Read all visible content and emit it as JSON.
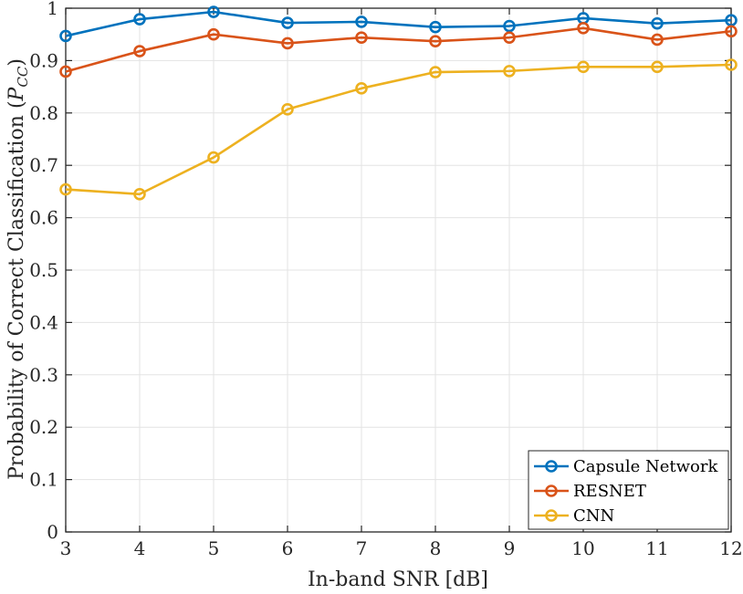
{
  "chart_data": {
    "type": "line",
    "title": "",
    "xlabel": "In-band SNR [dB]",
    "ylabel": "Probability of Correct Classification (P_CC)",
    "ylabel_main": "Probability of Correct Classification (",
    "ylabel_var": "P",
    "ylabel_sub": "CC",
    "ylabel_close": ")",
    "x": [
      3,
      4,
      5,
      6,
      7,
      8,
      9,
      10,
      11,
      12
    ],
    "xlim": [
      3,
      12
    ],
    "ylim": [
      0,
      1
    ],
    "xticks": [
      "3",
      "4",
      "5",
      "6",
      "7",
      "8",
      "9",
      "10",
      "11",
      "12"
    ],
    "yticks": [
      "0",
      "0.1",
      "0.2",
      "0.3",
      "0.4",
      "0.5",
      "0.6",
      "0.7",
      "0.8",
      "0.9",
      "1"
    ],
    "grid": true,
    "legend_position": "bottom-right",
    "series": [
      {
        "name": "Capsule Network",
        "color": "#0072BD",
        "values": [
          0.947,
          0.979,
          0.993,
          0.972,
          0.974,
          0.964,
          0.966,
          0.981,
          0.971,
          0.977
        ]
      },
      {
        "name": "RESNET",
        "color": "#D95319",
        "values": [
          0.879,
          0.918,
          0.95,
          0.933,
          0.944,
          0.937,
          0.944,
          0.962,
          0.94,
          0.956
        ]
      },
      {
        "name": "CNN",
        "color": "#EDB120",
        "values": [
          0.654,
          0.645,
          0.715,
          0.807,
          0.847,
          0.878,
          0.88,
          0.888,
          0.888,
          0.892
        ]
      }
    ]
  }
}
